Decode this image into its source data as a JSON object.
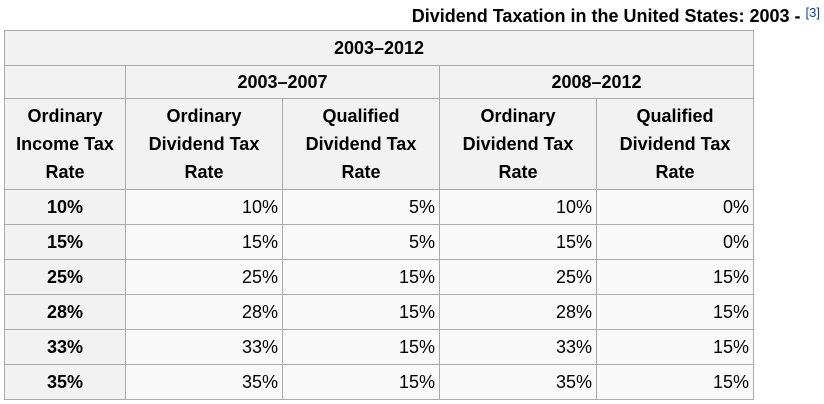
{
  "caption": {
    "title": "Dividend Taxation in the United States: 2003 -",
    "reference": "[3]"
  },
  "table": {
    "period_header": "2003–2012",
    "sub_periods": [
      "2003–2007",
      "2008–2012"
    ],
    "column_headers": [
      "Ordinary Income Tax Rate",
      "Ordinary Dividend Tax Rate",
      "Qualified Dividend Tax Rate",
      "Ordinary Dividend Tax Rate",
      "Qualified Dividend Tax Rate"
    ],
    "rows": [
      {
        "bracket": "10%",
        "values": [
          "10%",
          "5%",
          "10%",
          "0%"
        ]
      },
      {
        "bracket": "15%",
        "values": [
          "15%",
          "5%",
          "15%",
          "0%"
        ]
      },
      {
        "bracket": "25%",
        "values": [
          "25%",
          "15%",
          "25%",
          "15%"
        ]
      },
      {
        "bracket": "28%",
        "values": [
          "28%",
          "15%",
          "28%",
          "15%"
        ]
      },
      {
        "bracket": "33%",
        "values": [
          "33%",
          "15%",
          "33%",
          "15%"
        ]
      },
      {
        "bracket": "35%",
        "values": [
          "35%",
          "15%",
          "35%",
          "15%"
        ]
      }
    ]
  }
}
